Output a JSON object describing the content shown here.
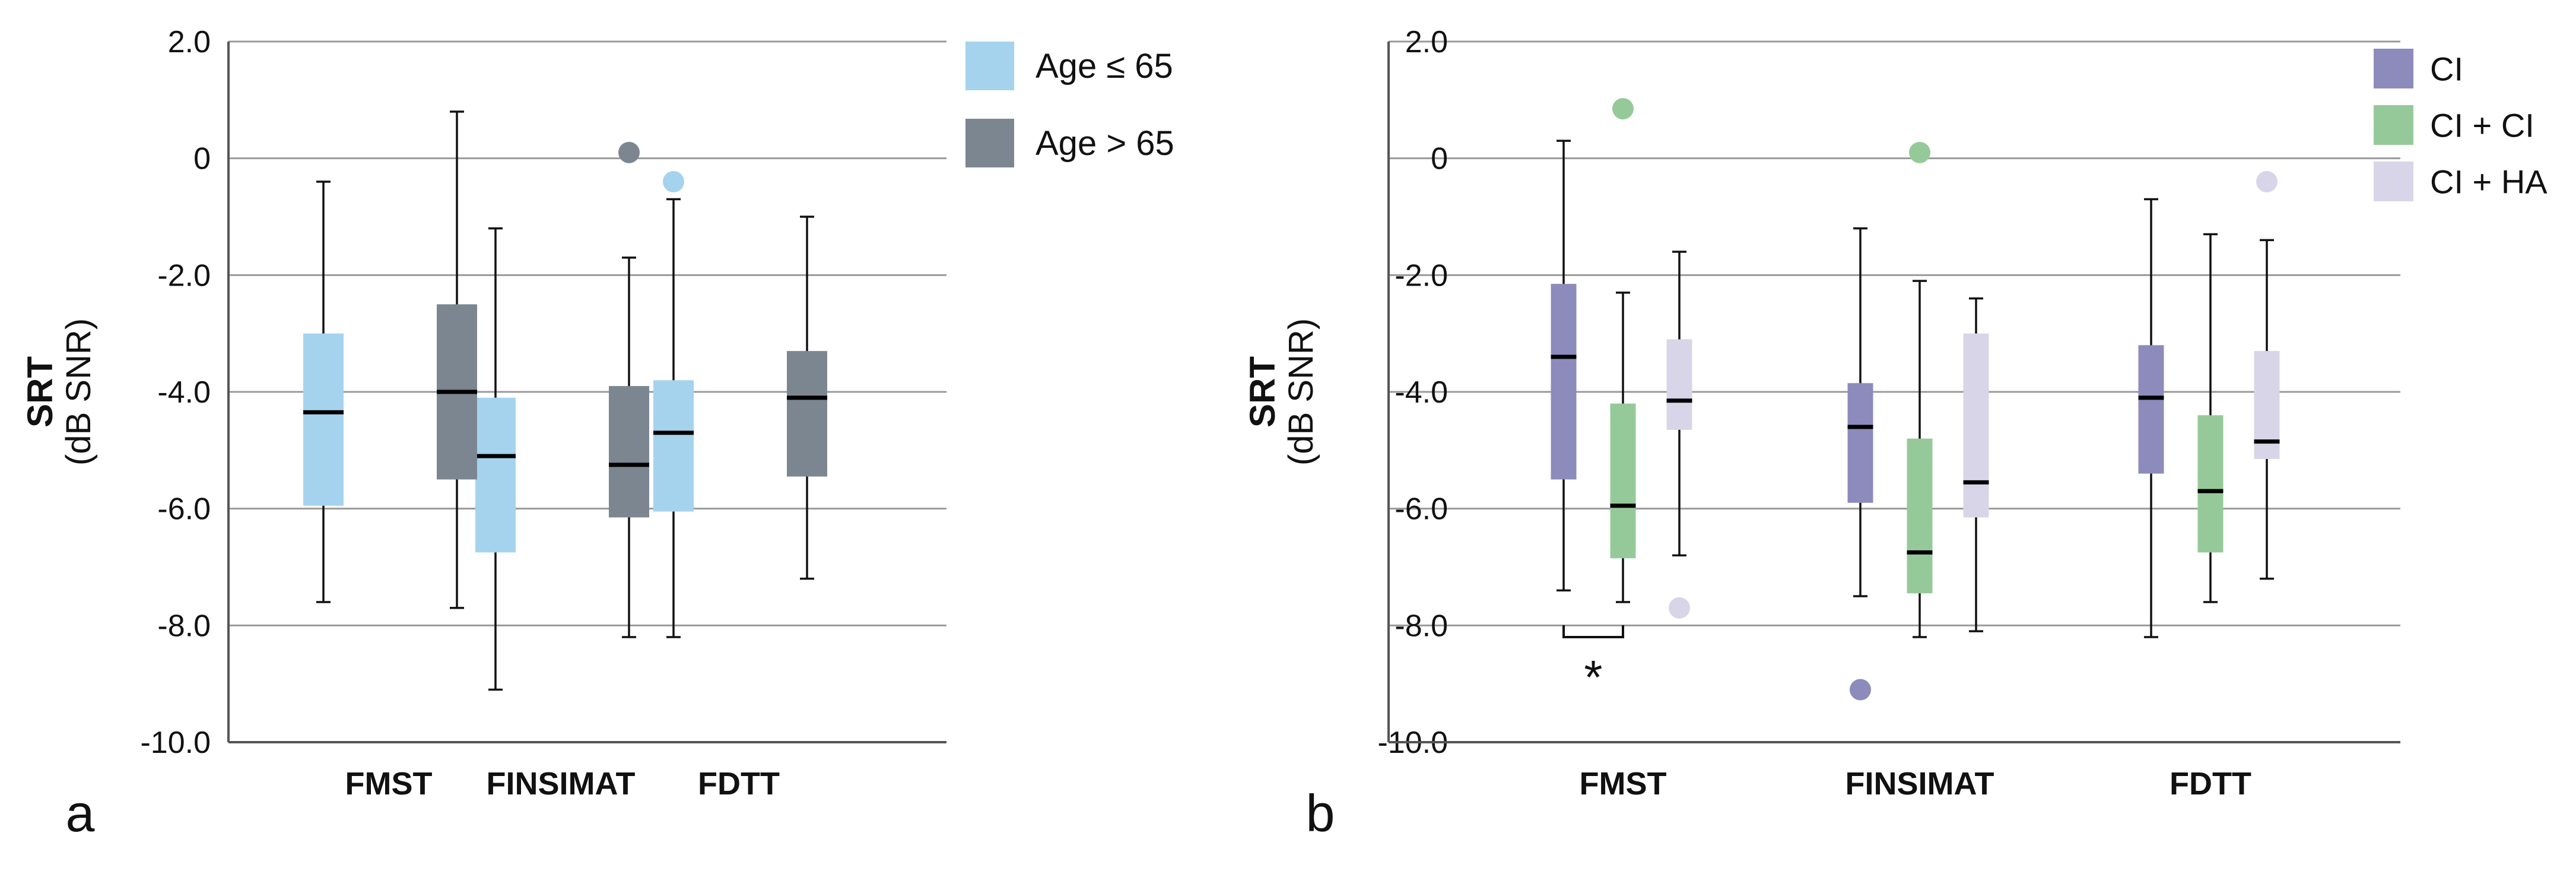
{
  "chart_data": [
    {
      "type": "boxplot",
      "panel_label": "a",
      "ylabel_bold": "SRT",
      "ylabel_sub": "(dB SNR)",
      "ylim": [
        -10.0,
        2.0
      ],
      "yticks": [
        2.0,
        0,
        -2.0,
        -4.0,
        -6.0,
        -8.0,
        -10.0
      ],
      "ytick_labels": [
        "2.0",
        "0",
        "-2.0",
        "-4.0",
        "-6.0",
        "-8.0",
        "-10.0"
      ],
      "grid": true,
      "categories": [
        "FMST",
        "FINSIMAT",
        "FDTT"
      ],
      "legend_position": "top-right",
      "series": [
        {
          "name": "Age ≤ 65",
          "color": "#a5d3ee",
          "boxes": [
            {
              "category": "FMST",
              "whisker_low": -7.6,
              "q1": -5.95,
              "median": -4.35,
              "q3": -3.0,
              "whisker_high": -0.4,
              "outliers": []
            },
            {
              "category": "FINSIMAT",
              "whisker_low": -9.1,
              "q1": -6.75,
              "median": -5.1,
              "q3": -4.1,
              "whisker_high": -1.2,
              "outliers": []
            },
            {
              "category": "FDTT",
              "whisker_low": -8.2,
              "q1": -6.05,
              "median": -4.7,
              "q3": -3.8,
              "whisker_high": -0.7,
              "outliers": [
                -0.4
              ]
            }
          ]
        },
        {
          "name": "Age > 65",
          "color": "#7c8690",
          "boxes": [
            {
              "category": "FMST",
              "whisker_low": -7.7,
              "q1": -5.5,
              "median": -4.0,
              "q3": -2.5,
              "whisker_high": 0.8,
              "outliers": []
            },
            {
              "category": "FINSIMAT",
              "whisker_low": -8.2,
              "q1": -6.15,
              "median": -5.25,
              "q3": -3.9,
              "whisker_high": -1.7,
              "outliers": [
                0.1
              ]
            },
            {
              "category": "FDTT",
              "whisker_low": -7.2,
              "q1": -5.45,
              "median": -4.1,
              "q3": -3.3,
              "whisker_high": -1.0,
              "outliers": []
            }
          ]
        }
      ]
    },
    {
      "type": "boxplot",
      "panel_label": "b",
      "ylabel_bold": "SRT",
      "ylabel_sub": "(dB SNR)",
      "ylim": [
        -10.0,
        2.0
      ],
      "yticks": [
        2.0,
        0,
        -2.0,
        -4.0,
        -6.0,
        -8.0,
        -10.0
      ],
      "ytick_labels": [
        "2.0",
        "0",
        "-2.0",
        "-4.0",
        "-6.0",
        "-8.0",
        "-10.0"
      ],
      "grid": true,
      "categories": [
        "FMST",
        "FINSIMAT",
        "FDTT"
      ],
      "legend_position": "top-right",
      "significance": {
        "category": "FMST",
        "between": [
          "CI",
          "CI + CI"
        ],
        "label": "*"
      },
      "series": [
        {
          "name": "CI",
          "color": "#8d8bbb",
          "boxes": [
            {
              "category": "FMST",
              "whisker_low": -7.4,
              "q1": -5.5,
              "median": -3.4,
              "q3": -2.15,
              "whisker_high": 0.3,
              "outliers": []
            },
            {
              "category": "FINSIMAT",
              "whisker_low": -7.5,
              "q1": -5.9,
              "median": -4.6,
              "q3": -3.85,
              "whisker_high": -1.2,
              "outliers": [
                -9.1
              ]
            },
            {
              "category": "FDTT",
              "whisker_low": -8.2,
              "q1": -5.4,
              "median": -4.1,
              "q3": -3.2,
              "whisker_high": -0.7,
              "outliers": []
            }
          ]
        },
        {
          "name": "CI + CI",
          "color": "#96c99a",
          "boxes": [
            {
              "category": "FMST",
              "whisker_low": -7.6,
              "q1": -6.85,
              "median": -5.95,
              "q3": -4.2,
              "whisker_high": -2.3,
              "outliers": [
                0.85
              ]
            },
            {
              "category": "FINSIMAT",
              "whisker_low": -8.2,
              "q1": -7.45,
              "median": -6.75,
              "q3": -4.8,
              "whisker_high": -2.1,
              "outliers": [
                0.1
              ]
            },
            {
              "category": "FDTT",
              "whisker_low": -7.6,
              "q1": -6.75,
              "median": -5.7,
              "q3": -4.4,
              "whisker_high": -1.3,
              "outliers": []
            }
          ]
        },
        {
          "name": "CI + HA",
          "color": "#d8d5e8",
          "boxes": [
            {
              "category": "FMST",
              "whisker_low": -6.8,
              "q1": -4.65,
              "median": -4.15,
              "q3": -3.1,
              "whisker_high": -1.6,
              "outliers": [
                -7.7
              ]
            },
            {
              "category": "FINSIMAT",
              "whisker_low": -8.1,
              "q1": -6.15,
              "median": -5.55,
              "q3": -3.0,
              "whisker_high": -2.4,
              "outliers": []
            },
            {
              "category": "FDTT",
              "whisker_low": -7.2,
              "q1": -5.15,
              "median": -4.85,
              "q3": -3.3,
              "whisker_high": -1.4,
              "outliers": [
                -0.4
              ]
            }
          ]
        }
      ]
    }
  ]
}
